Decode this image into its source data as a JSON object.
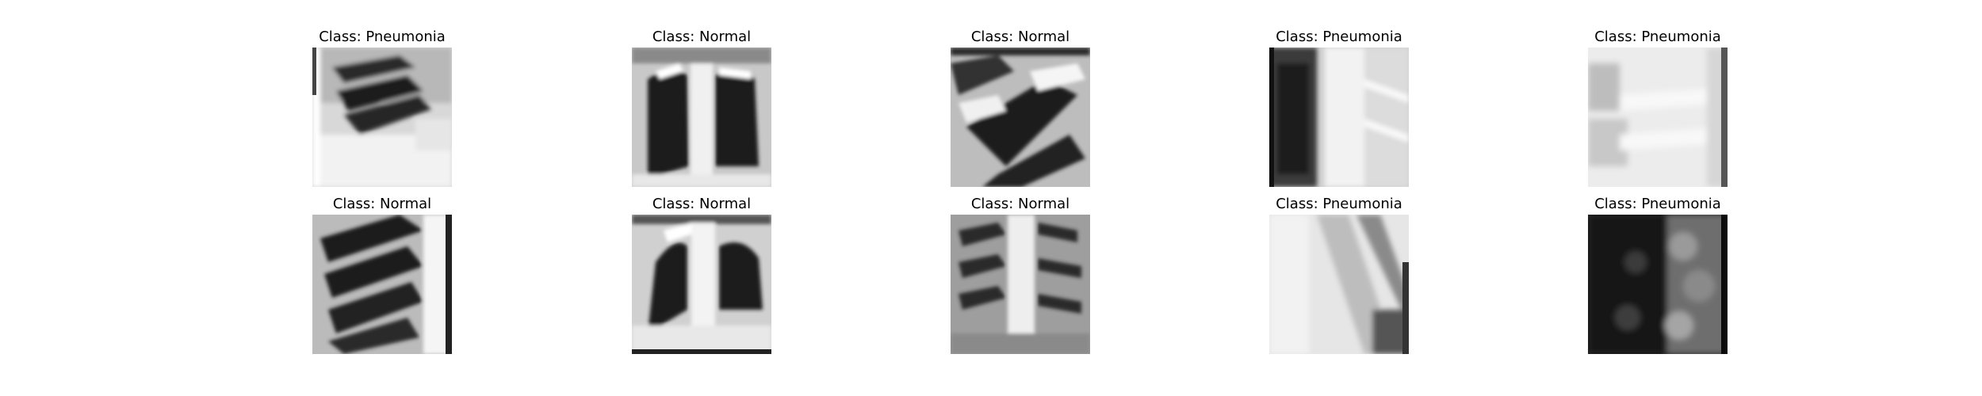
{
  "panels": [
    {
      "title": "Class: Pneumonia",
      "image": "chest x-ray crop, ribs on left side, bright lower region"
    },
    {
      "title": "Class: Normal",
      "image": "chest x-ray, two dark lung fields with bright spine"
    },
    {
      "title": "Class: Normal",
      "image": "chest x-ray crop, dark diagonal ribs and lung"
    },
    {
      "title": "Class: Pneumonia",
      "image": "chest x-ray crop, dark left lung, bright right side"
    },
    {
      "title": "Class: Pneumonia",
      "image": "chest x-ray, mostly bright washed-out field"
    },
    {
      "title": "Class: Normal",
      "image": "chest x-ray crop, dark ribs with bright right edge"
    },
    {
      "title": "Class: Normal",
      "image": "chest x-ray, two dark lung fields with bright diaphragm"
    },
    {
      "title": "Class: Normal",
      "image": "chest x-ray, ribs with bright central spine"
    },
    {
      "title": "Class: Pneumonia",
      "image": "chest x-ray crop, bright hazy field with diagonal band"
    },
    {
      "title": "Class: Pneumonia",
      "image": "chest x-ray, very dark field with mottled texture"
    }
  ]
}
